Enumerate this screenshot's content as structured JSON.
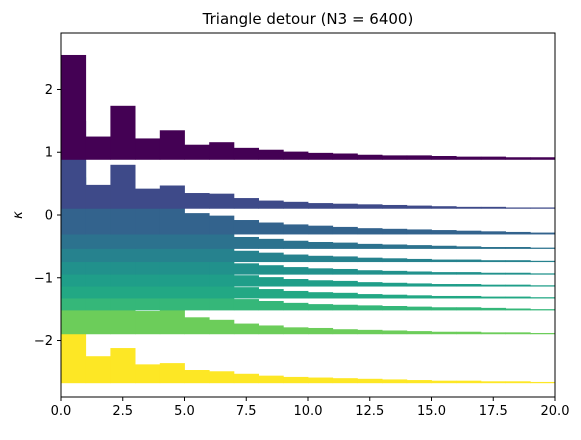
{
  "chart_data": {
    "type": "bar",
    "title": "Triangle detour (N3 = 6400)",
    "xlabel": "",
    "ylabel": "κ",
    "xlim": [
      0,
      20
    ],
    "ylim": [
      -2.9,
      2.9
    ],
    "grid": false,
    "x_ticks": [
      {
        "value": 0,
        "label": "0.0"
      },
      {
        "value": 2.5,
        "label": "2.5"
      },
      {
        "value": 5,
        "label": "5.0"
      },
      {
        "value": 7.5,
        "label": "7.5"
      },
      {
        "value": 10,
        "label": "10.0"
      },
      {
        "value": 12.5,
        "label": "12.5"
      },
      {
        "value": 15,
        "label": "15.0"
      },
      {
        "value": 17.5,
        "label": "17.5"
      },
      {
        "value": 20,
        "label": "20.0"
      }
    ],
    "y_ticks": [
      {
        "value": 2,
        "label": "2"
      },
      {
        "value": 1,
        "label": "1"
      },
      {
        "value": 0,
        "label": "0"
      },
      {
        "value": -1,
        "label": "−1"
      },
      {
        "value": -2,
        "label": "−2"
      }
    ],
    "x_bins": [
      0,
      1,
      2,
      3,
      4,
      5,
      6,
      7,
      8,
      9,
      10,
      11,
      12,
      13,
      14,
      15,
      16,
      17,
      18,
      19,
      20
    ],
    "series": [
      {
        "color": "#fde725",
        "baseline": -2.68,
        "values": [
          -1.6,
          -2.25,
          -2.12,
          -2.38,
          -2.36,
          -2.47,
          -2.49,
          -2.53,
          -2.56,
          -2.58,
          -2.59,
          -2.6,
          -2.61,
          -2.62,
          -2.63,
          -2.64,
          -2.64,
          -2.65,
          -2.65,
          -2.66
        ]
      },
      {
        "color": "#6ccd5a",
        "baseline": -1.9,
        "values": [
          -0.78,
          -1.47,
          -1.3,
          -1.53,
          -1.5,
          -1.63,
          -1.67,
          -1.73,
          -1.76,
          -1.79,
          -1.8,
          -1.82,
          -1.83,
          -1.84,
          -1.85,
          -1.86,
          -1.86,
          -1.87,
          -1.87,
          -1.88
        ]
      },
      {
        "color": "#35b779",
        "baseline": -1.52,
        "values": [
          -0.33,
          -1.06,
          -0.88,
          -1.13,
          -1.11,
          -1.23,
          -1.28,
          -1.34,
          -1.37,
          -1.4,
          -1.42,
          -1.43,
          -1.44,
          -1.45,
          -1.46,
          -1.47,
          -1.47,
          -1.48,
          -1.49,
          -1.5
        ]
      },
      {
        "color": "#22a884",
        "baseline": -1.33,
        "values": [
          -0.06,
          -0.87,
          -0.7,
          -0.94,
          -0.92,
          -1.05,
          -1.09,
          -1.15,
          -1.18,
          -1.21,
          -1.23,
          -1.24,
          -1.26,
          -1.27,
          -1.28,
          -1.29,
          -1.29,
          -1.3,
          -1.3,
          -1.31
        ]
      },
      {
        "color": "#1f9e89",
        "baseline": -1.14,
        "values": [
          0.16,
          -0.68,
          -0.5,
          -0.74,
          -0.73,
          -0.86,
          -0.9,
          -0.96,
          -0.99,
          -1.02,
          -1.04,
          -1.05,
          -1.07,
          -1.08,
          -1.09,
          -1.1,
          -1.1,
          -1.11,
          -1.11,
          -1.12
        ]
      },
      {
        "color": "#21918c",
        "baseline": -0.95,
        "values": [
          0.36,
          -0.48,
          -0.3,
          -0.55,
          -0.54,
          -0.67,
          -0.71,
          -0.77,
          -0.8,
          -0.83,
          -0.85,
          -0.86,
          -0.88,
          -0.89,
          -0.9,
          -0.91,
          -0.91,
          -0.92,
          -0.92,
          -0.93
        ]
      },
      {
        "color": "#26828e",
        "baseline": -0.75,
        "values": [
          0.6,
          -0.27,
          -0.1,
          -0.35,
          -0.34,
          -0.47,
          -0.51,
          -0.57,
          -0.6,
          -0.63,
          -0.65,
          -0.66,
          -0.68,
          -0.69,
          -0.7,
          -0.71,
          -0.71,
          -0.72,
          -0.72,
          -0.73
        ]
      },
      {
        "color": "#2c728e",
        "baseline": -0.54,
        "values": [
          0.86,
          -0.02,
          0.14,
          -0.12,
          -0.1,
          -0.24,
          -0.28,
          -0.35,
          -0.38,
          -0.41,
          -0.43,
          -0.44,
          -0.46,
          -0.47,
          -0.48,
          -0.49,
          -0.5,
          -0.51,
          -0.51,
          -0.52
        ]
      },
      {
        "color": "#33638d",
        "baseline": -0.31,
        "values": [
          1.1,
          0.25,
          0.41,
          0.16,
          0.16,
          0.03,
          -0.01,
          -0.08,
          -0.12,
          -0.15,
          -0.17,
          -0.19,
          -0.21,
          -0.22,
          -0.23,
          -0.24,
          -0.25,
          -0.26,
          -0.27,
          -0.28
        ]
      },
      {
        "color": "#3e4a89",
        "baseline": 0.1,
        "values": [
          1.5,
          0.48,
          0.8,
          0.42,
          0.47,
          0.35,
          0.34,
          0.27,
          0.23,
          0.21,
          0.19,
          0.18,
          0.17,
          0.16,
          0.15,
          0.14,
          0.13,
          0.13,
          0.12,
          0.12
        ]
      },
      {
        "color": "#440154",
        "baseline": 0.88,
        "values": [
          2.55,
          1.25,
          1.74,
          1.22,
          1.35,
          1.12,
          1.16,
          1.07,
          1.04,
          1.01,
          0.99,
          0.98,
          0.96,
          0.95,
          0.95,
          0.94,
          0.93,
          0.93,
          0.92,
          0.92
        ]
      }
    ]
  }
}
